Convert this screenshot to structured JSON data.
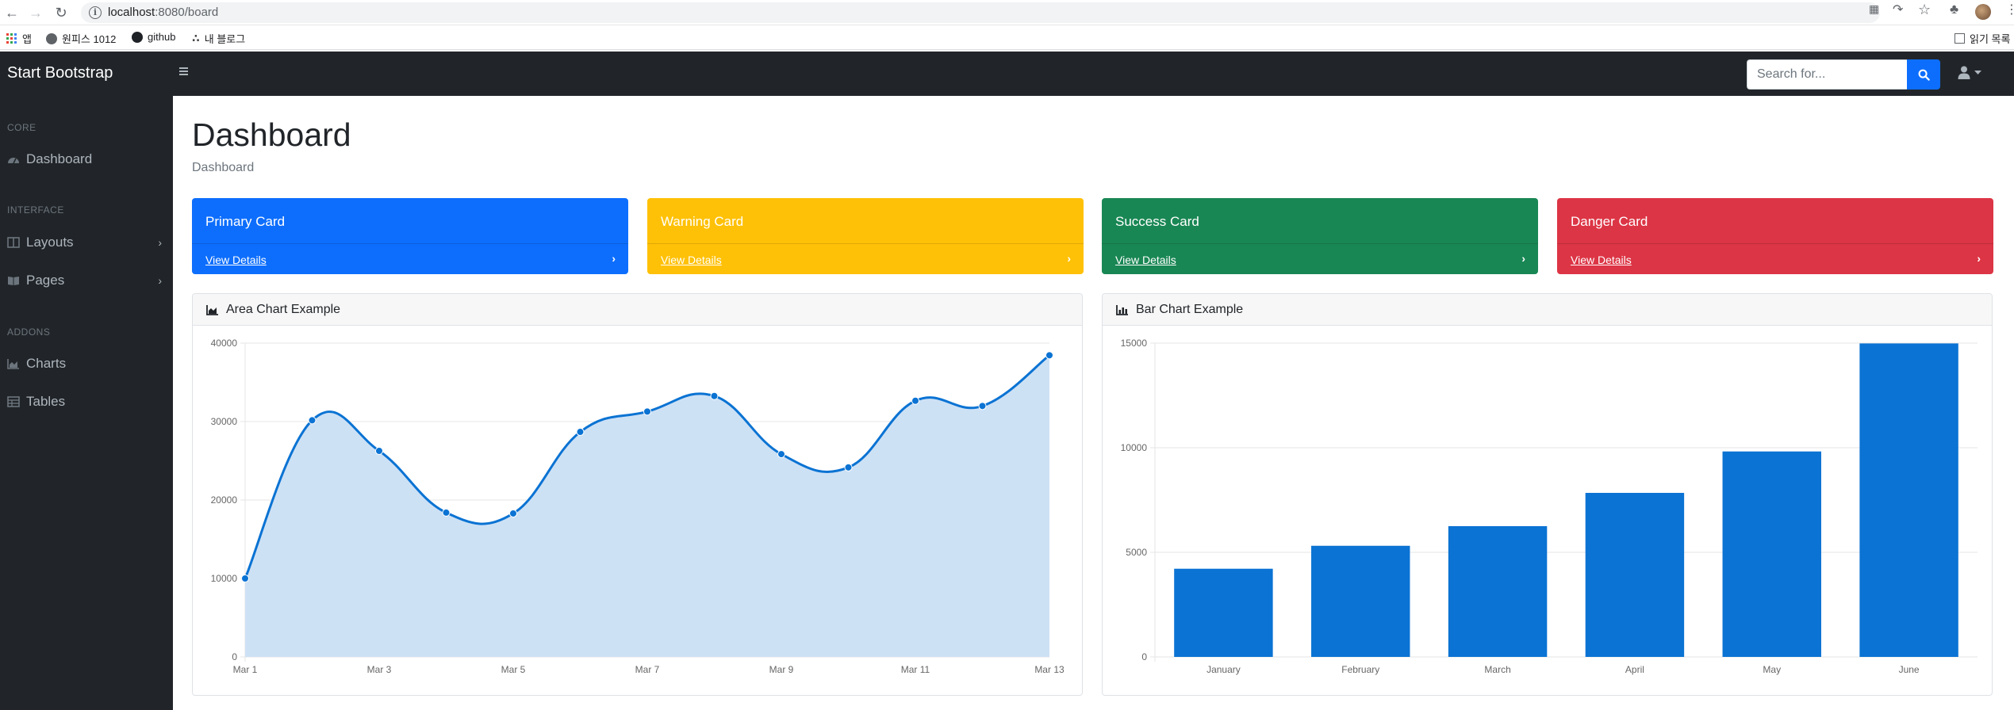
{
  "browser": {
    "url_host": "localhost",
    "url_path": ":8080/board",
    "bookmarks": [
      {
        "label": "앱"
      },
      {
        "label": "원피스 1012"
      },
      {
        "label": "github"
      },
      {
        "label": "내 블로그"
      }
    ],
    "reading_list": "읽기 목록"
  },
  "navbar": {
    "brand": "Start Bootstrap",
    "search_placeholder": "Search for..."
  },
  "sidebar": {
    "sections": [
      {
        "heading": "CORE",
        "items": [
          {
            "label": "Dashboard",
            "icon": "tachometer-icon",
            "chevron": false
          }
        ]
      },
      {
        "heading": "INTERFACE",
        "items": [
          {
            "label": "Layouts",
            "icon": "columns-icon",
            "chevron": true
          },
          {
            "label": "Pages",
            "icon": "book-open-icon",
            "chevron": true
          }
        ]
      },
      {
        "heading": "ADDONS",
        "items": [
          {
            "label": "Charts",
            "icon": "chart-area-icon",
            "chevron": false
          },
          {
            "label": "Tables",
            "icon": "table-icon",
            "chevron": false
          }
        ]
      }
    ]
  },
  "main": {
    "title": "Dashboard",
    "breadcrumb": "Dashboard",
    "cards": [
      {
        "title": "Primary Card",
        "link": "View Details",
        "color": "#0d6efd"
      },
      {
        "title": "Warning Card",
        "link": "View Details",
        "color": "#ffc107"
      },
      {
        "title": "Success Card",
        "link": "View Details",
        "color": "#198754"
      },
      {
        "title": "Danger Card",
        "link": "View Details",
        "color": "#dc3545"
      }
    ],
    "area_chart_title": "Area Chart Example",
    "bar_chart_title": "Bar Chart Example"
  },
  "chart_data": [
    {
      "type": "area",
      "title": "Area Chart Example",
      "x": [
        "Mar 1",
        "Mar 2",
        "Mar 3",
        "Mar 4",
        "Mar 5",
        "Mar 6",
        "Mar 7",
        "Mar 8",
        "Mar 9",
        "Mar 10",
        "Mar 11",
        "Mar 12",
        "Mar 13"
      ],
      "x_tick_labels": [
        "Mar 1",
        "Mar 3",
        "Mar 5",
        "Mar 7",
        "Mar 9",
        "Mar 11",
        "Mar 13"
      ],
      "values": [
        10000,
        30162,
        26263,
        18394,
        18287,
        28682,
        31274,
        33259,
        25849,
        24159,
        32651,
        31984,
        38451
      ],
      "ylim": [
        0,
        40000
      ],
      "y_ticks": [
        0,
        10000,
        20000,
        30000,
        40000
      ],
      "grid": true,
      "color": "#0b73d3",
      "fill": "#cde1f5"
    },
    {
      "type": "bar",
      "title": "Bar Chart Example",
      "categories": [
        "January",
        "February",
        "March",
        "April",
        "May",
        "June"
      ],
      "values": [
        4215,
        5312,
        6251,
        7841,
        9821,
        14984
      ],
      "ylim": [
        0,
        15000
      ],
      "y_ticks": [
        0,
        5000,
        10000,
        15000
      ],
      "grid": true,
      "color": "#0b73d3"
    }
  ]
}
